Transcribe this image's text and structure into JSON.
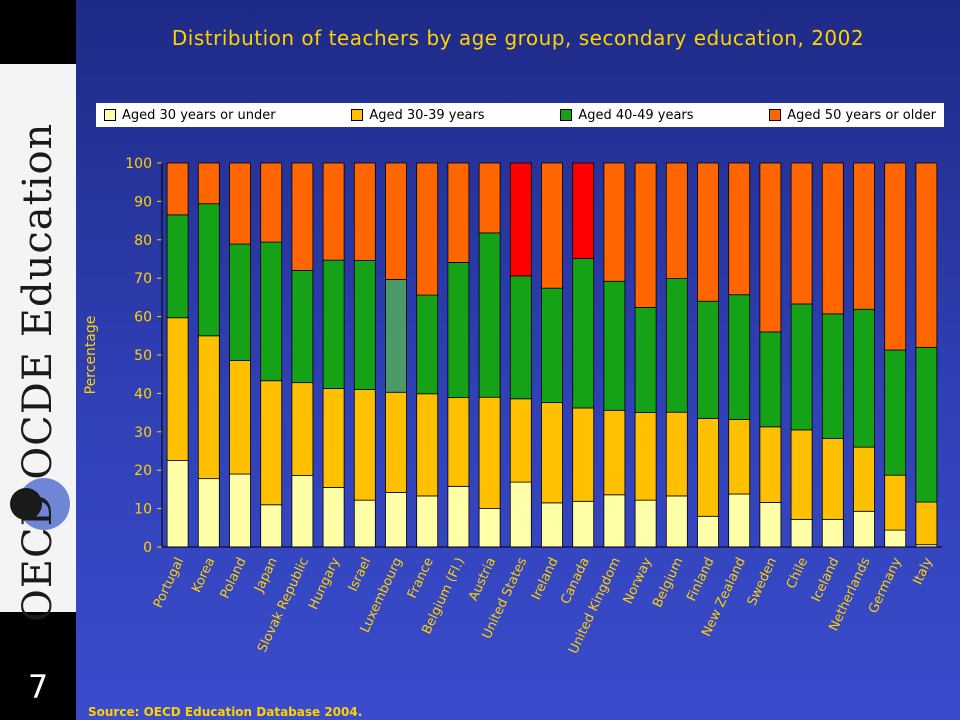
{
  "slide": {
    "number": "7",
    "brand_vertical": "OECD  OCDE  Education",
    "source": "Source: OECD Education Database 2004."
  },
  "colors": {
    "under30": "#ffffa8",
    "age30_39": "#ffc000",
    "age40_49": "#16a216",
    "age50plus": "#ff6600",
    "highlight_green": "#4c9a6a",
    "highlight_red": "#ff0000",
    "axis_text": "#ffd200"
  },
  "chart_data": {
    "type": "bar",
    "stacked": true,
    "title": "Distribution of teachers by age group, secondary education, 2002",
    "xlabel": "",
    "ylabel": "Percentage",
    "ylim": [
      0,
      100
    ],
    "yticks": [
      0,
      10,
      20,
      30,
      40,
      50,
      60,
      70,
      80,
      90,
      100
    ],
    "legend_position": "top",
    "categories": [
      "Portugal",
      "Korea",
      "Poland",
      "Japan",
      "Slovak Republic",
      "Hungary",
      "Israel",
      "Luxembourg",
      "France",
      "Belgium (Fl.)",
      "Austria",
      "United States",
      "Ireland",
      "Canada",
      "United Kingdom",
      "Norway",
      "Belgium",
      "Finland",
      "New Zealand",
      "Sweden",
      "Chile",
      "Iceland",
      "Netherlands",
      "Germany",
      "Italy"
    ],
    "series": [
      {
        "name": "Aged 30 years or under",
        "values": [
          22.5,
          17.8,
          19,
          11,
          18.6,
          15.5,
          12.2,
          14.2,
          13.3,
          15.8,
          10,
          16.9,
          11.5,
          11.9,
          13.6,
          12.2,
          13.3,
          8,
          13.8,
          11.6,
          7.2,
          7.2,
          9.3,
          4.4,
          0.6
        ]
      },
      {
        "name": "Aged 30-39 years",
        "values": [
          37.2,
          37.2,
          29.6,
          32.3,
          24.2,
          25.8,
          28.8,
          26.1,
          26.6,
          23.1,
          29,
          21.7,
          26.1,
          24.3,
          22,
          22.8,
          21.8,
          25.5,
          19.4,
          19.7,
          23.3,
          21.1,
          16.7,
          14.3,
          11.1
        ]
      },
      {
        "name": "Aged 40-49 years",
        "values": [
          26.8,
          34.4,
          30.3,
          36.1,
          29.2,
          33.4,
          33.6,
          29.4,
          25.7,
          35.2,
          42.8,
          32,
          29.8,
          38.9,
          33.6,
          27.4,
          34.8,
          30.5,
          32.5,
          24.7,
          32.8,
          32.4,
          35.9,
          32.6,
          40.3
        ]
      },
      {
        "name": "Aged 50 years or older",
        "values": [
          13.5,
          10.6,
          21.1,
          20.6,
          28,
          25.3,
          25.4,
          30.3,
          34.4,
          25.9,
          18.2,
          29.4,
          32.6,
          24.9,
          30.8,
          37.6,
          30.1,
          36,
          34.3,
          44,
          36.7,
          39.3,
          38.1,
          48.7,
          48
        ]
      }
    ],
    "highlights": [
      {
        "category": "Luxembourg",
        "series": "Aged 40-49 years",
        "color": "#4c9a6a"
      },
      {
        "category": "United States",
        "series": "Aged 50 years or older",
        "color": "#ff0000"
      },
      {
        "category": "Canada",
        "series": "Aged 50 years or older",
        "color": "#ff0000"
      }
    ]
  }
}
